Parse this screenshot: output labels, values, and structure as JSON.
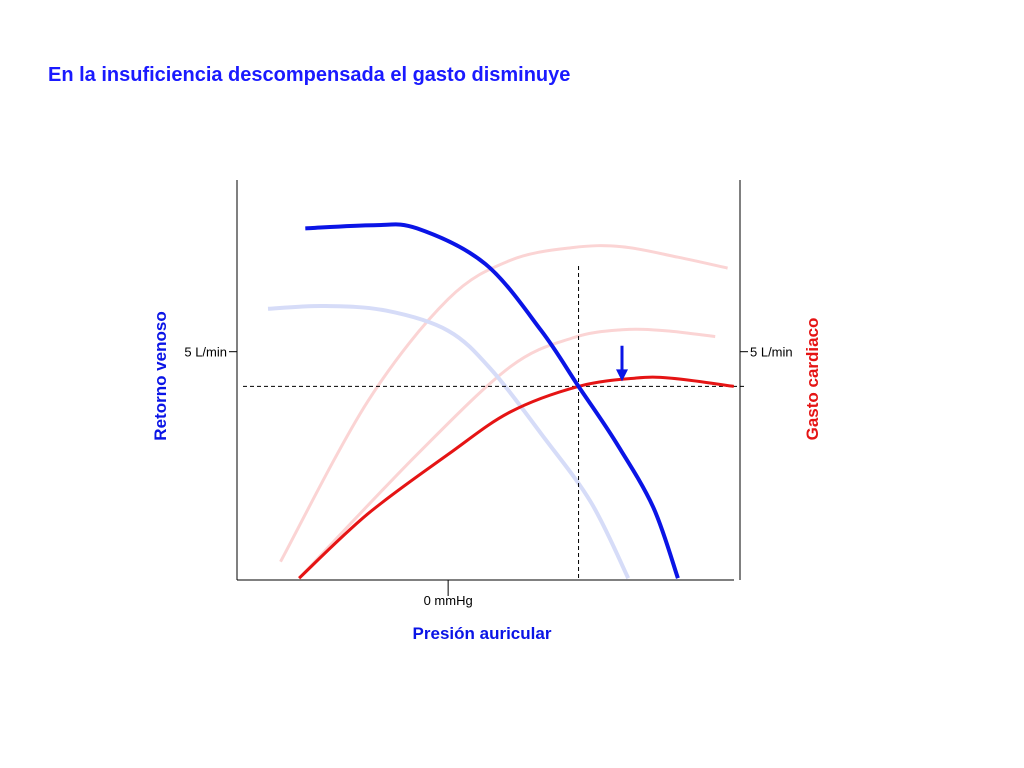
{
  "slide": {
    "title": "En la insuficiencia descompensada el gasto disminuye"
  },
  "colors": {
    "title": "#1a1aff",
    "venous": "#0a14e6",
    "venous_faded": "#d6dcf8",
    "cardiac": "#e51414",
    "cardiac_faded": "#fbd4d4",
    "axis": "#000000",
    "arrow": "#0a14e6"
  },
  "chart_data": {
    "type": "line",
    "xlabel": "Presión auricular",
    "ylabel_left": "Retorno venoso",
    "ylabel_right": "Gasto cardiaco",
    "x_tick_label": "0 mmHg",
    "y_tick_label_left": "5 L/min",
    "y_tick_label_right": "5 L/min",
    "x_tick_value": 0,
    "y_tick_value": 5,
    "xlim": [
      -3.4,
      4.7
    ],
    "ylim": [
      0,
      8.76
    ],
    "equilibrium": {
      "x": 2.1,
      "y": 4.24
    },
    "arrow_at": {
      "x": 2.8,
      "y_from": 5.13,
      "y_to": 4.35,
      "direction": "down"
    },
    "series": [
      {
        "role": "cardiac-faded-high",
        "points": [
          [
            -2.7,
            0.4
          ],
          [
            -1.3,
            3.9
          ],
          [
            0,
            6.15
          ],
          [
            1.0,
            7.0
          ],
          [
            2.0,
            7.28
          ],
          [
            2.8,
            7.3
          ],
          [
            3.7,
            7.07
          ],
          [
            4.5,
            6.83
          ]
        ]
      },
      {
        "role": "cardiac-faded-mid",
        "points": [
          [
            -2.4,
            0.04
          ],
          [
            -0.5,
            2.75
          ],
          [
            1.0,
            4.67
          ],
          [
            2.0,
            5.3
          ],
          [
            2.8,
            5.48
          ],
          [
            3.5,
            5.46
          ],
          [
            4.3,
            5.33
          ]
        ]
      },
      {
        "role": "cardiac-current",
        "points": [
          [
            -2.4,
            0.04
          ],
          [
            -1.3,
            1.44
          ],
          [
            0,
            2.75
          ],
          [
            1.0,
            3.68
          ],
          [
            2.1,
            4.24
          ],
          [
            3.0,
            4.42
          ],
          [
            3.6,
            4.42
          ],
          [
            4.6,
            4.24
          ]
        ]
      },
      {
        "role": "venous-faded",
        "points": [
          [
            -2.9,
            5.94
          ],
          [
            -2.0,
            6.0
          ],
          [
            -1.0,
            5.9
          ],
          [
            0,
            5.46
          ],
          [
            0.7,
            4.6
          ],
          [
            1.5,
            3.2
          ],
          [
            2.3,
            1.7
          ],
          [
            2.9,
            0.04
          ]
        ]
      },
      {
        "role": "venous-current",
        "points": [
          [
            -2.3,
            7.7
          ],
          [
            -1.2,
            7.77
          ],
          [
            -0.5,
            7.7
          ],
          [
            0.6,
            6.92
          ],
          [
            1.5,
            5.46
          ],
          [
            2.1,
            4.24
          ],
          [
            2.7,
            3.02
          ],
          [
            3.3,
            1.6
          ],
          [
            3.7,
            0.04
          ]
        ]
      }
    ]
  }
}
